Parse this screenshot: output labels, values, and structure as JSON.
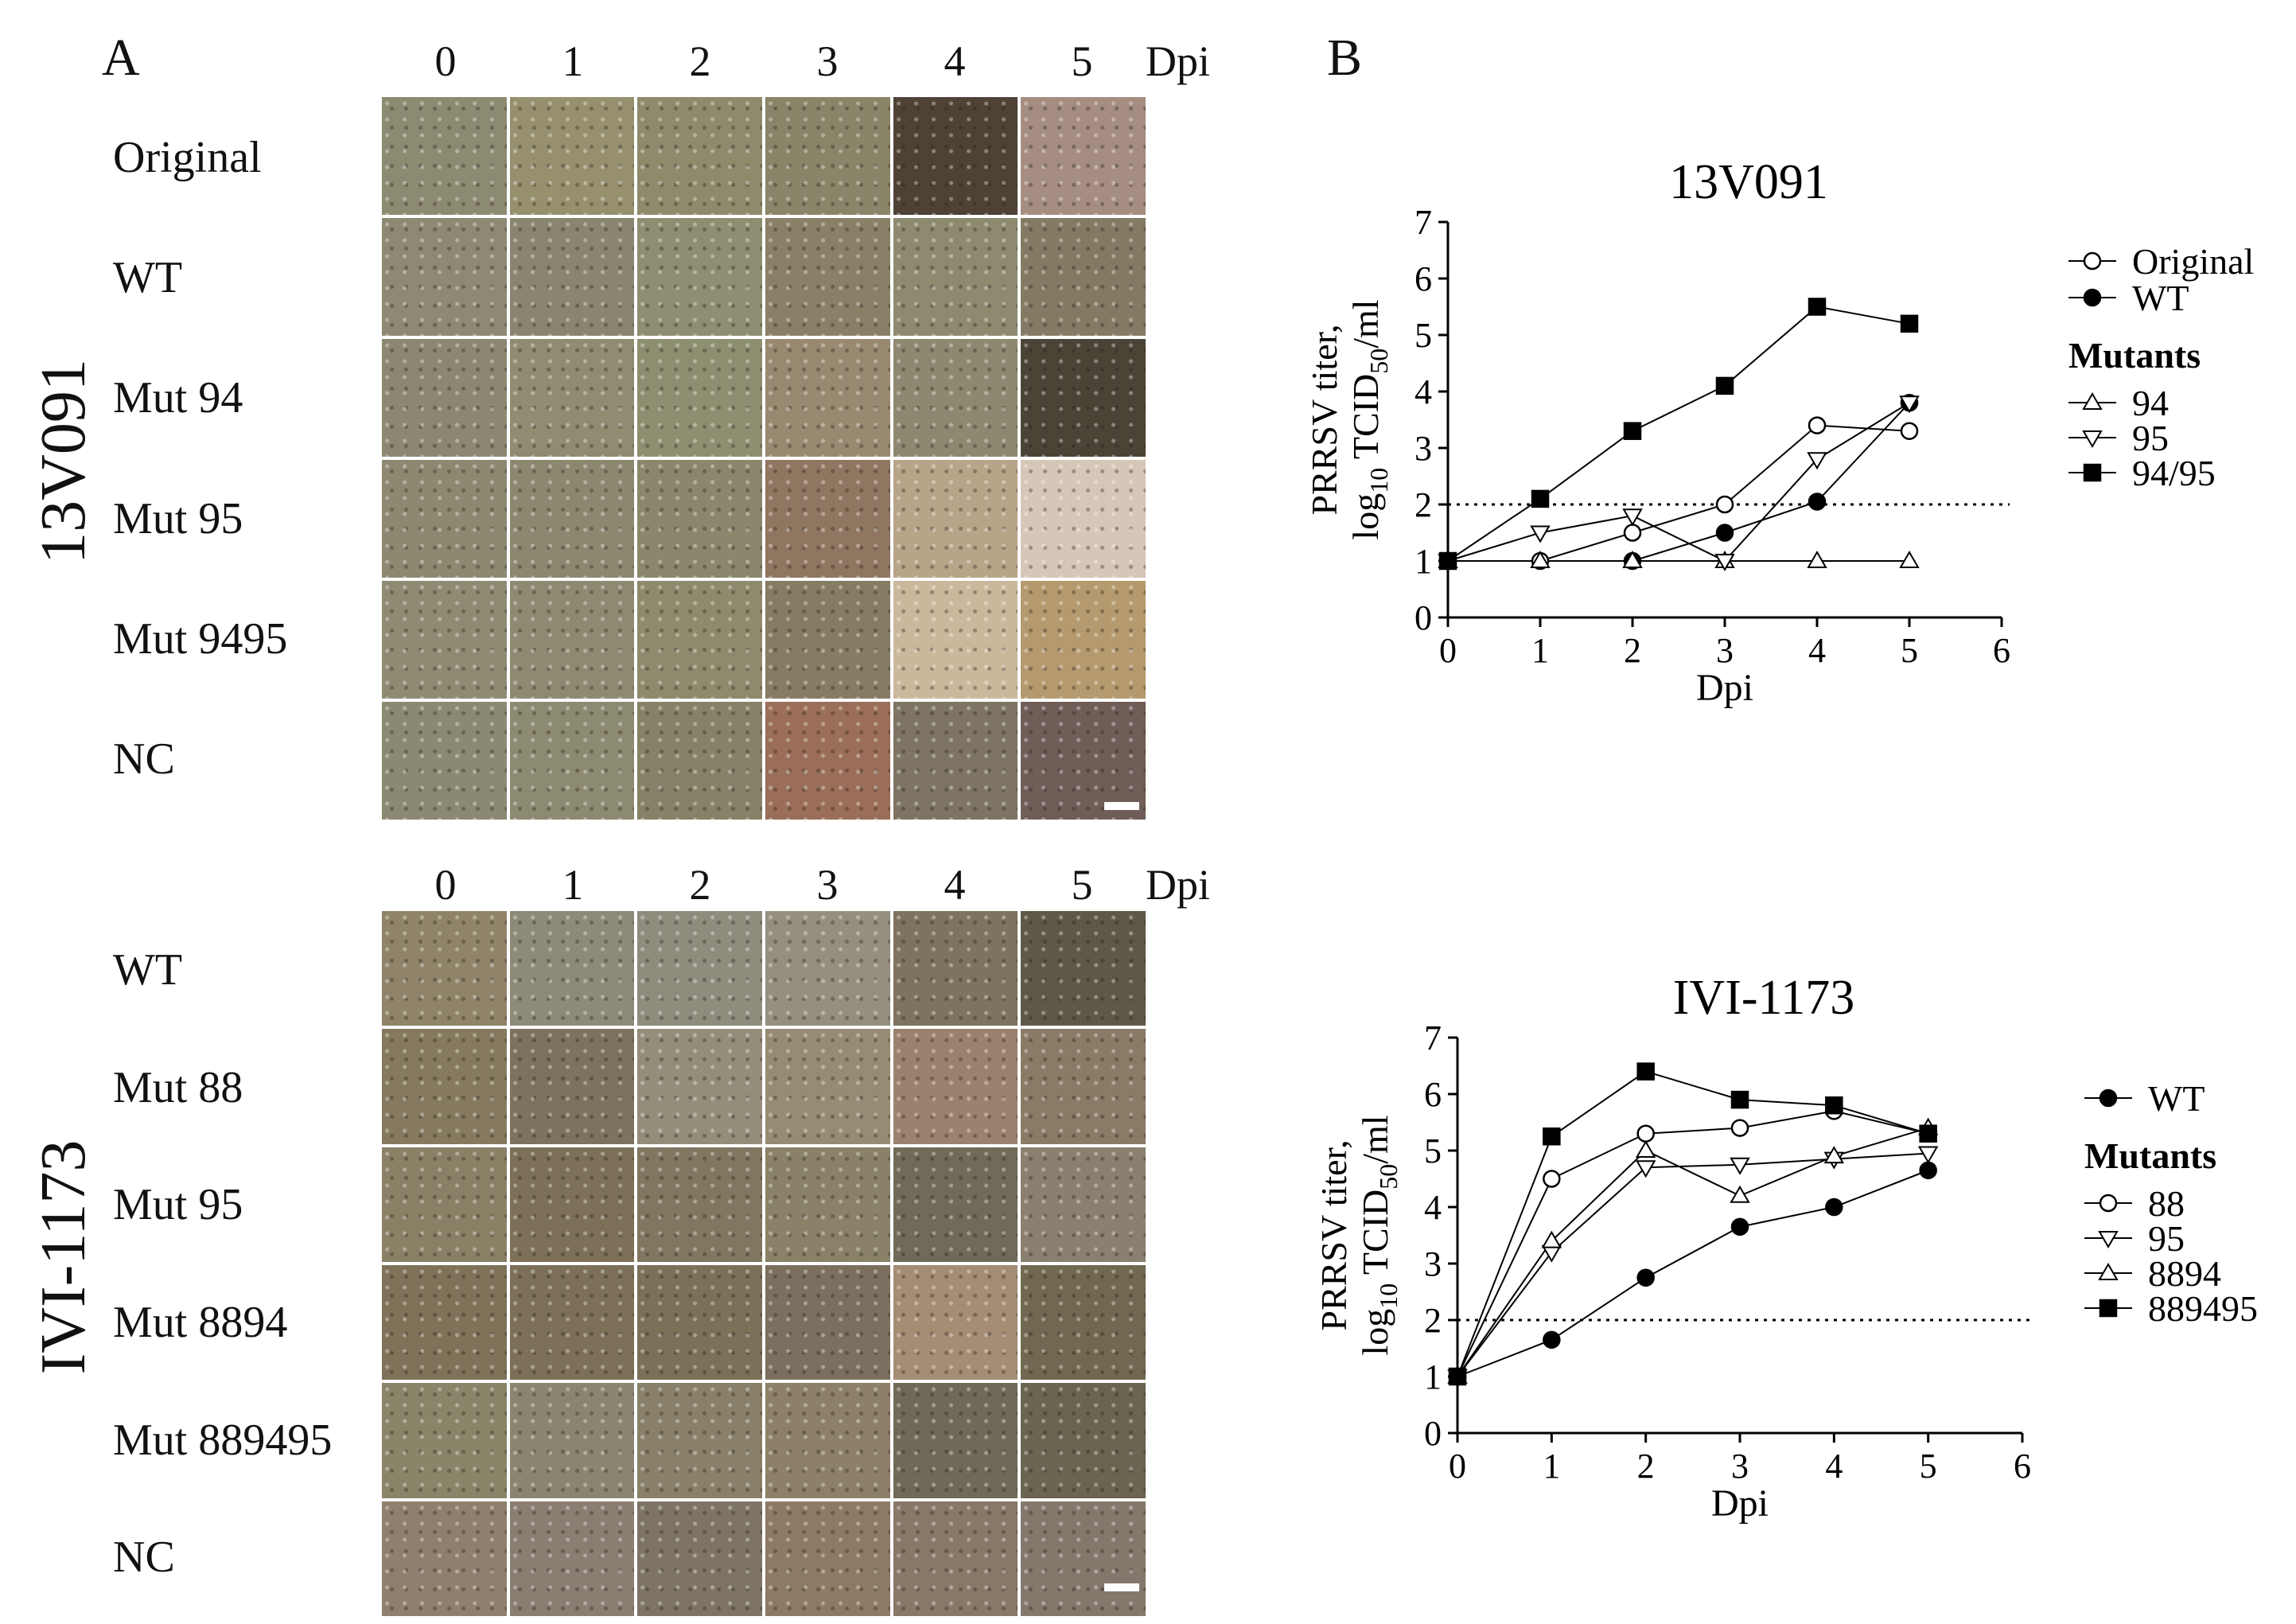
{
  "panel_a": {
    "letter": "A",
    "dpi_label": "Dpi",
    "columns": [
      "0",
      "1",
      "2",
      "3",
      "4",
      "5"
    ],
    "top": {
      "virus": "13V091",
      "rows": [
        "Original",
        "WT",
        "Mut 94",
        "Mut 95",
        "Mut 9495",
        "NC"
      ],
      "cell_colors": [
        [
          "#8d8a72",
          "#96906f",
          "#8f8a6c",
          "#8a8468",
          "#4e4234",
          "#a58d82"
        ],
        [
          "#8e8972",
          "#8a8570",
          "#8f8d72",
          "#8a8068",
          "#8d8a70",
          "#837a64"
        ],
        [
          "#8c8770",
          "#908b71",
          "#8d8f70",
          "#978a70",
          "#8d8870",
          "#4c4337"
        ],
        [
          "#8d8870",
          "#8c8870",
          "#8b876c",
          "#8f7660",
          "#b8a488",
          "#d6c6b8"
        ],
        [
          "#8f8b73",
          "#8e8a72",
          "#8f8a6c",
          "#857c64",
          "#cbb89c",
          "#b49a6e"
        ],
        [
          "#8c8972",
          "#8d8a72",
          "#878168",
          "#9a6e58",
          "#7d7464",
          "#6f5e58"
        ]
      ]
    },
    "bottom": {
      "virus": "IVI-1173",
      "rows": [
        "WT",
        "Mut 88",
        "Mut 95",
        "Mut 8894",
        "Mut 889495",
        "NC"
      ],
      "cell_colors": [
        [
          "#8f8468",
          "#8d8a7a",
          "#8f8c7e",
          "#948f7e",
          "#7d735e",
          "#5f5848"
        ],
        [
          "#857a5e",
          "#7d725e",
          "#938d7a",
          "#958c74",
          "#9b826e",
          "#8a7a66"
        ],
        [
          "#8a8066",
          "#7c7058",
          "#817660",
          "#8a8268",
          "#706a58",
          "#8a8070"
        ],
        [
          "#7f7258",
          "#7d7058",
          "#7b7058",
          "#7b7060",
          "#a58c74",
          "#706850"
        ],
        [
          "#8a8468",
          "#8a8570",
          "#888068",
          "#8c8068",
          "#6f6a58",
          "#6a6450"
        ],
        [
          "#8f7f6e",
          "#8a7d72",
          "#7e7466",
          "#8d7a64",
          "#877868",
          "#84786c"
        ]
      ]
    }
  },
  "panel_b": {
    "letter": "B",
    "charts": [
      {
        "type": "line",
        "title": "13V091",
        "xlabel": "Dpi",
        "ylabel_line1": "PRRSV titer,",
        "ylabel_log": "log",
        "ylabel_log_sub": "10",
        "ylabel_tcid": " TCID",
        "ylabel_tcid_sub": "50",
        "ylabel_unit": "/ml",
        "xlim": [
          0,
          6
        ],
        "ylim": [
          0,
          7
        ],
        "xticks": [
          "0",
          "1",
          "2",
          "3",
          "4",
          "5",
          "6"
        ],
        "yticks": [
          "0",
          "1",
          "2",
          "3",
          "4",
          "5",
          "6",
          "7"
        ],
        "threshold": 2,
        "legend_group_label": "Mutants",
        "legend_top": [
          {
            "label": "Original",
            "marker": "circle-open"
          },
          {
            "label": "WT",
            "marker": "circle-filled"
          }
        ],
        "legend_mutants": [
          {
            "label": "94",
            "marker": "triangle-up-open"
          },
          {
            "label": "95",
            "marker": "triangle-down-open"
          },
          {
            "label": "94/95",
            "marker": "square-filled"
          }
        ],
        "series": [
          {
            "name": "Original",
            "marker": "circle-open",
            "x": [
              0,
              1,
              2,
              3,
              4,
              5
            ],
            "values": [
              1,
              1,
              1.5,
              2,
              3.4,
              3.3
            ]
          },
          {
            "name": "WT",
            "marker": "circle-filled",
            "x": [
              2,
              3,
              4,
              5
            ],
            "values": [
              1,
              1.5,
              2.05,
              3.8
            ]
          },
          {
            "name": "94",
            "marker": "triangle-up-open",
            "x": [
              0,
              1,
              2,
              3,
              4,
              5
            ],
            "values": [
              1,
              1,
              1,
              1,
              1,
              1
            ]
          },
          {
            "name": "95",
            "marker": "triangle-down-open",
            "x": [
              0,
              1,
              2,
              3,
              4,
              5
            ],
            "values": [
              1,
              1.5,
              1.8,
              1,
              2.8,
              3.8
            ]
          },
          {
            "name": "94/95",
            "marker": "square-filled",
            "x": [
              0,
              1,
              2,
              3,
              4,
              5
            ],
            "values": [
              1,
              2.1,
              3.3,
              4.1,
              5.5,
              5.2
            ]
          }
        ]
      },
      {
        "type": "line",
        "title": "IVI-1173",
        "xlabel": "Dpi",
        "ylabel_line1": "PRRSV titer,",
        "ylabel_log": "log",
        "ylabel_log_sub": "10",
        "ylabel_tcid": " TCID",
        "ylabel_tcid_sub": "50",
        "ylabel_unit": "/ml",
        "xlim": [
          0,
          6
        ],
        "ylim": [
          0,
          7
        ],
        "xticks": [
          "0",
          "1",
          "2",
          "3",
          "4",
          "5",
          "6"
        ],
        "yticks": [
          "0",
          "1",
          "2",
          "3",
          "4",
          "5",
          "6",
          "7"
        ],
        "threshold": 2,
        "legend_group_label": "Mutants",
        "legend_top": [
          {
            "label": "WT",
            "marker": "circle-filled"
          }
        ],
        "legend_mutants": [
          {
            "label": "88",
            "marker": "circle-open"
          },
          {
            "label": "95",
            "marker": "triangle-down-open"
          },
          {
            "label": "8894",
            "marker": "triangle-up-open"
          },
          {
            "label": "889495",
            "marker": "square-filled"
          }
        ],
        "series": [
          {
            "name": "WT",
            "marker": "circle-filled",
            "x": [
              0,
              1,
              2,
              3,
              4,
              5
            ],
            "values": [
              1,
              1.65,
              2.75,
              3.65,
              4.0,
              4.65
            ]
          },
          {
            "name": "88",
            "marker": "circle-open",
            "x": [
              0,
              1,
              2,
              3,
              4,
              5
            ],
            "values": [
              1,
              4.5,
              5.3,
              5.4,
              5.7,
              5.3
            ]
          },
          {
            "name": "95",
            "marker": "triangle-down-open",
            "x": [
              0,
              1,
              2,
              3,
              4,
              5
            ],
            "values": [
              1,
              3.2,
              4.7,
              4.75,
              4.85,
              4.95
            ]
          },
          {
            "name": "8894",
            "marker": "triangle-up-open",
            "x": [
              0,
              1,
              2,
              3,
              4,
              5
            ],
            "values": [
              1,
              3.4,
              5.0,
              4.2,
              4.9,
              5.4
            ]
          },
          {
            "name": "889495",
            "marker": "square-filled",
            "x": [
              0,
              1,
              2,
              3,
              4,
              5
            ],
            "values": [
              1,
              5.25,
              6.4,
              5.9,
              5.8,
              5.3
            ]
          }
        ]
      }
    ]
  }
}
